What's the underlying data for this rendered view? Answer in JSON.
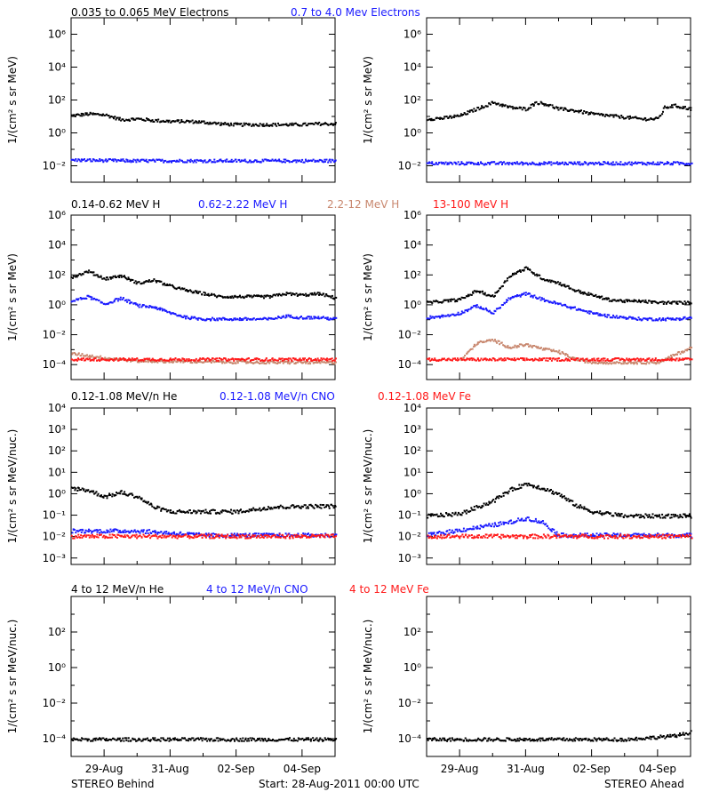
{
  "colors": {
    "black": "#000000",
    "blue": "#1a1aff",
    "tan": "#c8876e",
    "red": "#ff1a1a"
  },
  "footer": {
    "left": "STEREO Behind",
    "center": "Start: 28-Aug-2011 00:00 UTC",
    "right": "STEREO Ahead"
  },
  "x_axis": {
    "ticks": [
      "29-Aug",
      "31-Aug",
      "02-Sep",
      "04-Sep"
    ]
  },
  "rows": [
    {
      "headers": [
        {
          "text": "0.035 to 0.065 MeV Electrons",
          "color": "#000000"
        },
        {
          "text": "0.7 to 4.0 Mev Electrons",
          "color": "#1a1aff"
        }
      ],
      "ylabel": "1/(cm² s sr MeV)"
    },
    {
      "headers": [
        {
          "text": "0.14-0.62 MeV H",
          "color": "#000000"
        },
        {
          "text": "0.62-2.22 MeV H",
          "color": "#1a1aff"
        },
        {
          "text": "2.2-12 MeV H",
          "color": "#c8876e"
        },
        {
          "text": "13-100 MeV H",
          "color": "#ff1a1a"
        }
      ],
      "ylabel": "1/(cm² s sr MeV)"
    },
    {
      "headers": [
        {
          "text": "0.12-1.08 MeV/n He",
          "color": "#000000"
        },
        {
          "text": "0.12-1.08 MeV/n CNO",
          "color": "#1a1aff"
        },
        {
          "text": "0.12-1.08 MeV Fe",
          "color": "#ff1a1a"
        }
      ],
      "ylabel": "1/(cm² s sr MeV/nuc.)"
    },
    {
      "headers": [
        {
          "text": "4 to 12 MeV/n He",
          "color": "#000000"
        },
        {
          "text": "4 to 12 MeV/n CNO",
          "color": "#1a1aff"
        },
        {
          "text": "4 to 12 MeV Fe",
          "color": "#ff1a1a"
        }
      ],
      "ylabel": "1/(cm² s sr MeV/nuc.)"
    }
  ],
  "chart_data": [
    {
      "type": "scatter",
      "panel": "electrons-behind",
      "yscale": "log",
      "ylim_exp": [
        -3,
        7
      ],
      "ytick_exps": [
        -2,
        0,
        2,
        4,
        6
      ],
      "series": [
        {
          "name": "0.035 to 0.065 MeV Electrons",
          "color": "#000000",
          "x": [
            0,
            0.5,
            1,
            1.5,
            2,
            2.5,
            3,
            3.5,
            4,
            4.5,
            5,
            5.5,
            6,
            6.5,
            7,
            7.5,
            8
          ],
          "y_exp": [
            1.1,
            1.2,
            1.15,
            0.85,
            0.9,
            0.8,
            0.75,
            0.75,
            0.7,
            0.6,
            0.55,
            0.55,
            0.55,
            0.55,
            0.55,
            0.6,
            0.6
          ]
        },
        {
          "name": "0.7 to 4.0 Mev Electrons",
          "color": "#1a1aff",
          "x": [
            0,
            2,
            4,
            6,
            8
          ],
          "y_exp": [
            -1.6,
            -1.65,
            -1.65,
            -1.65,
            -1.65
          ]
        }
      ]
    },
    {
      "type": "scatter",
      "panel": "electrons-ahead",
      "yscale": "log",
      "ylim_exp": [
        -3,
        7
      ],
      "ytick_exps": [
        -2,
        0,
        2,
        4,
        6
      ],
      "series": [
        {
          "name": "0.035 to 0.065 MeV Electrons",
          "color": "#000000",
          "x": [
            0,
            0.5,
            1,
            1.5,
            2,
            2.5,
            3,
            3.3,
            3.6,
            4,
            4.5,
            5,
            5.5,
            6,
            6.5,
            7,
            7.2,
            7.5,
            8
          ],
          "y_exp": [
            0.9,
            0.95,
            1.1,
            1.5,
            1.9,
            1.6,
            1.5,
            1.9,
            1.8,
            1.5,
            1.4,
            1.2,
            1.1,
            1.0,
            0.9,
            0.9,
            1.6,
            1.7,
            1.5
          ]
        },
        {
          "name": "0.7 to 4.0 Mev Electrons",
          "color": "#1a1aff",
          "x": [
            0,
            2,
            4,
            6,
            8
          ],
          "y_exp": [
            -1.8,
            -1.8,
            -1.8,
            -1.8,
            -1.8
          ]
        }
      ]
    },
    {
      "type": "scatter",
      "panel": "protons-behind",
      "yscale": "log",
      "ylim_exp": [
        -5,
        6
      ],
      "ytick_exps": [
        -4,
        -2,
        0,
        2,
        4,
        6
      ],
      "series": [
        {
          "name": "0.14-0.62 MeV H",
          "color": "#000000",
          "x": [
            0,
            0.5,
            1,
            1.5,
            2,
            2.5,
            3,
            3.5,
            4,
            4.5,
            5,
            5.5,
            6,
            6.5,
            7,
            7.5,
            8
          ],
          "y_exp": [
            1.9,
            2.3,
            1.8,
            2.0,
            1.5,
            1.7,
            1.3,
            1.0,
            0.8,
            0.6,
            0.6,
            0.6,
            0.6,
            0.8,
            0.7,
            0.8,
            0.5
          ]
        },
        {
          "name": "0.62-2.22 MeV H",
          "color": "#1a1aff",
          "x": [
            0,
            0.5,
            1,
            1.5,
            2,
            2.5,
            3,
            3.5,
            4,
            4.5,
            5,
            5.5,
            6,
            6.5,
            7,
            7.5,
            8
          ],
          "y_exp": [
            0.3,
            0.6,
            0.1,
            0.5,
            0,
            -0.1,
            -0.5,
            -0.8,
            -0.9,
            -0.9,
            -0.9,
            -0.9,
            -0.9,
            -0.7,
            -0.8,
            -0.8,
            -0.9
          ]
        },
        {
          "name": "2.2-12 MeV H",
          "color": "#c8876e",
          "x": [
            0,
            1,
            2,
            4,
            6,
            8
          ],
          "y_exp": [
            -3.2,
            -3.5,
            -3.7,
            -3.75,
            -3.8,
            -3.8
          ]
        },
        {
          "name": "13-100 MeV H",
          "color": "#ff1a1a",
          "x": [
            0,
            2,
            4,
            6,
            8
          ],
          "y_exp": [
            -3.6,
            -3.6,
            -3.6,
            -3.6,
            -3.6
          ]
        }
      ]
    },
    {
      "type": "scatter",
      "panel": "protons-ahead",
      "yscale": "log",
      "ylim_exp": [
        -5,
        6
      ],
      "ytick_exps": [
        -4,
        -2,
        0,
        2,
        4,
        6
      ],
      "series": [
        {
          "name": "0.14-0.62 MeV H",
          "color": "#000000",
          "x": [
            0,
            0.5,
            1,
            1.5,
            2,
            2.5,
            3,
            3.5,
            4,
            4.5,
            5,
            5.5,
            6,
            6.5,
            7,
            7.5,
            8
          ],
          "y_exp": [
            0.2,
            0.3,
            0.4,
            1,
            0.6,
            2,
            2.5,
            1.8,
            1.5,
            1.0,
            0.7,
            0.4,
            0.3,
            0.3,
            0.2,
            0.2,
            0.2
          ]
        },
        {
          "name": "0.62-2.22 MeV H",
          "color": "#1a1aff",
          "x": [
            0,
            0.5,
            1,
            1.5,
            2,
            2.5,
            3,
            3.5,
            4,
            4.5,
            5,
            5.5,
            6,
            6.5,
            7,
            7.5,
            8
          ],
          "y_exp": [
            -0.8,
            -0.7,
            -0.5,
            0,
            -0.5,
            0.5,
            0.8,
            0.4,
            0.1,
            -0.2,
            -0.5,
            -0.7,
            -0.8,
            -0.9,
            -0.9,
            -0.9,
            -0.8
          ]
        },
        {
          "name": "2.2-12 MeV H",
          "color": "#c8876e",
          "x": [
            1,
            1.5,
            2,
            2.5,
            3,
            3.5,
            4,
            4.5,
            5,
            7,
            7.5,
            8
          ],
          "y_exp": [
            -3.7,
            -2.5,
            -2.3,
            -2.8,
            -2.6,
            -2.9,
            -3.1,
            -3.6,
            -3.8,
            -3.8,
            -3.3,
            -2.8
          ]
        },
        {
          "name": "13-100 MeV H",
          "color": "#ff1a1a",
          "x": [
            0,
            2,
            4,
            6,
            8
          ],
          "y_exp": [
            -3.6,
            -3.6,
            -3.6,
            -3.6,
            -3.6
          ]
        }
      ]
    },
    {
      "type": "scatter",
      "panel": "heavy-ions-behind",
      "yscale": "log",
      "ylim_exp": [
        -3.3,
        4
      ],
      "ytick_exps": [
        -3,
        -2,
        -1,
        0,
        1,
        2,
        3,
        4
      ],
      "series": [
        {
          "name": "0.12-1.08 MeV/n He",
          "color": "#000000",
          "x": [
            0,
            0.5,
            1,
            1.5,
            2,
            2.5,
            3,
            4,
            5,
            6,
            7,
            8
          ],
          "y_exp": [
            0.3,
            0.2,
            -0.1,
            0.1,
            -0.1,
            -0.6,
            -0.8,
            -0.8,
            -0.8,
            -0.6,
            -0.55,
            -0.55
          ]
        },
        {
          "name": "0.12-1.08 MeV/n CNO",
          "color": "#1a1aff",
          "x": [
            0,
            2,
            4,
            6,
            8
          ],
          "y_exp": [
            -1.7,
            -1.7,
            -1.9,
            -1.9,
            -1.9
          ]
        },
        {
          "name": "0.12-1.08 MeV Fe",
          "color": "#ff1a1a",
          "x": [
            0,
            2,
            4,
            6,
            8
          ],
          "y_exp": [
            -1.95,
            -1.95,
            -1.95,
            -1.95,
            -1.95
          ]
        }
      ]
    },
    {
      "type": "scatter",
      "panel": "heavy-ions-ahead",
      "yscale": "log",
      "ylim_exp": [
        -3.3,
        4
      ],
      "ytick_exps": [
        -3,
        -2,
        -1,
        0,
        1,
        2,
        3,
        4
      ],
      "series": [
        {
          "name": "0.12-1.08 MeV/n He",
          "color": "#000000",
          "x": [
            0,
            1,
            1.5,
            2,
            2.5,
            3,
            3.5,
            4,
            4.5,
            5,
            6,
            7,
            8
          ],
          "y_exp": [
            -1,
            -0.9,
            -0.6,
            -0.3,
            0.2,
            0.5,
            0.3,
            0,
            -0.5,
            -0.8,
            -1,
            -1,
            -1
          ]
        },
        {
          "name": "0.12-1.08 MeV/n CNO",
          "color": "#1a1aff",
          "x": [
            0,
            2.5,
            3,
            3.5,
            4,
            8
          ],
          "y_exp": [
            -1.9,
            -1.3,
            -1.1,
            -1.3,
            -1.9,
            -1.9
          ]
        },
        {
          "name": "0.12-1.08 MeV Fe",
          "color": "#ff1a1a",
          "x": [
            0,
            2,
            4,
            6,
            8
          ],
          "y_exp": [
            -1.95,
            -1.95,
            -1.95,
            -1.95,
            -1.95
          ]
        }
      ]
    },
    {
      "type": "scatter",
      "panel": "high-energy-behind",
      "yscale": "log",
      "ylim_exp": [
        -5,
        4
      ],
      "ytick_exps": [
        -4,
        -2,
        0,
        2
      ],
      "series": [
        {
          "name": "4 to 12 MeV/n He",
          "color": "#000000",
          "x": [
            0,
            2,
            4,
            6,
            8
          ],
          "y_exp": [
            -4,
            -4,
            -4,
            -4,
            -4
          ]
        }
      ]
    },
    {
      "type": "scatter",
      "panel": "high-energy-ahead",
      "yscale": "log",
      "ylim_exp": [
        -5,
        4
      ],
      "ytick_exps": [
        -4,
        -2,
        0,
        2
      ],
      "series": [
        {
          "name": "4 to 12 MeV/n He",
          "color": "#000000",
          "x": [
            0,
            2,
            4,
            6,
            7.5,
            8
          ],
          "y_exp": [
            -4,
            -4,
            -4,
            -4,
            -3.8,
            -3.6
          ]
        }
      ]
    }
  ]
}
